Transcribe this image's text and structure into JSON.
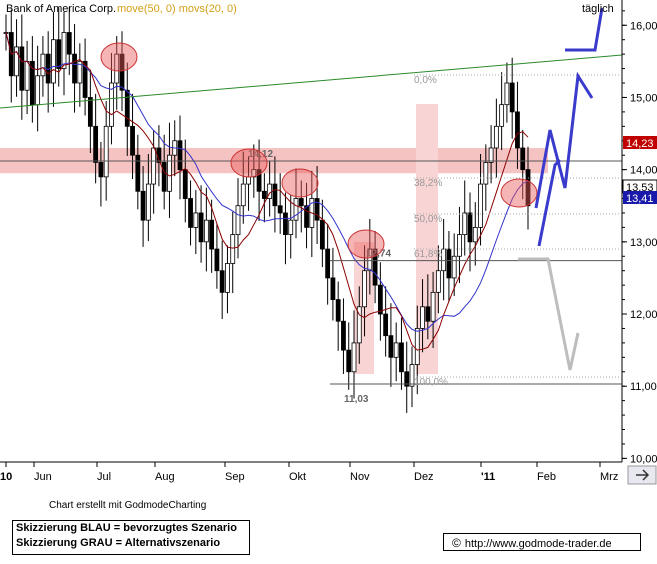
{
  "chart_data": {
    "type": "candlestick",
    "title": "Bank of America Corp.",
    "indicators_label": "move(50, 0)  movs(20, 0)",
    "period_label": "täglich",
    "y_axis": {
      "range": [
        9.95,
        16.35
      ],
      "ticks": [
        "10,00",
        "11,00",
        "12,00",
        "13,00",
        "14,00",
        "15,00",
        "16,00"
      ]
    },
    "x_axis": {
      "labels": [
        "10",
        "Jun",
        "Jul",
        "Aug",
        "Sep",
        "Okt",
        "Nov",
        "Dez",
        "'11",
        "Feb",
        "Mrz"
      ]
    },
    "levels": [
      {
        "label": "14,12",
        "value": 14.12
      },
      {
        "label": "12,74",
        "value": 12.74
      },
      {
        "label": "11,03",
        "value": 11.03
      }
    ],
    "fibonacci": [
      "0,0%",
      "38,2%",
      "50,0%",
      "61,8%",
      "100,0%"
    ],
    "price_tags": [
      {
        "label": "14,23",
        "value": 14.23,
        "color": "#c00000"
      },
      {
        "label": "13,53",
        "value": 13.53,
        "color": "#000000"
      },
      {
        "label": "13,41",
        "value": 13.41,
        "color": "#1a1aaa"
      }
    ],
    "close_series": [
      15.9,
      15.3,
      15.7,
      15.1,
      15.5,
      14.9,
      15.3,
      15.6,
      15.2,
      15.8,
      15.4,
      15.9,
      15.6,
      15.2,
      15.5,
      15.0,
      14.6,
      14.1,
      13.9,
      14.6,
      15.2,
      15.6,
      15.1,
      14.6,
      14.2,
      13.7,
      13.3,
      13.8,
      14.3,
      14.1,
      13.7,
      14.2,
      14.4,
      14.0,
      13.6,
      13.2,
      13.4,
      13.0,
      13.3,
      12.9,
      12.6,
      12.3,
      12.7,
      13.1,
      13.5,
      13.8,
      13.9,
      14.0,
      13.7,
      13.6,
      13.8,
      13.5,
      13.4,
      13.1,
      13.3,
      13.6,
      13.5,
      13.2,
      13.6,
      13.3,
      12.9,
      12.5,
      12.2,
      11.9,
      11.5,
      11.2,
      11.6,
      12.1,
      12.6,
      12.9,
      12.4,
      12.0,
      11.7,
      11.4,
      11.6,
      11.2,
      11.0,
      11.3,
      11.8,
      12.1,
      11.9,
      12.3,
      12.6,
      12.9,
      12.5,
      12.8,
      13.1,
      13.4,
      13.0,
      13.2,
      13.8,
      14.1,
      14.3,
      14.6,
      14.9,
      15.2,
      14.8,
      14.3,
      14.0,
      13.5
    ]
  },
  "credit": "Chart erstellt mit GodmodeCharting",
  "legend": {
    "blue": "Skizzierung BLAU = bevorzugtes Szenario",
    "grey": "Skizzierung GRAU = Alternativszenario"
  },
  "url": "http://www.godmode-trader.de",
  "colors": {
    "resistance_band": "#f6c3c3",
    "sma50": "#3333cc",
    "sma20": "#8b0000",
    "trend": "#2a8a2a",
    "scenario_blue": "#3a3acc",
    "scenario_grey": "#bdbdbd"
  }
}
